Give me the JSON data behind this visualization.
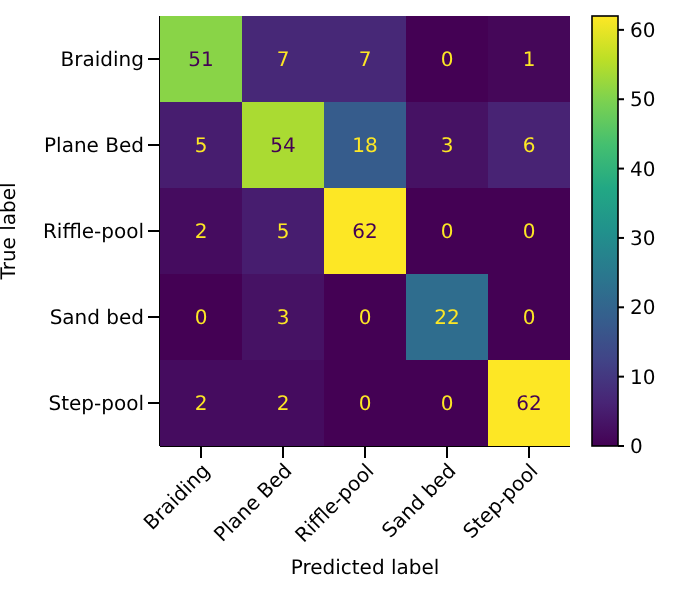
{
  "chart_data": {
    "type": "heatmap",
    "xlabel": "Predicted label",
    "ylabel": "True label",
    "categories": [
      "Braiding",
      "Plane Bed",
      "Riffle-pool",
      "Sand bed",
      "Step-pool"
    ],
    "y_categories": [
      "Braiding",
      "Plane Bed",
      "Riffle-pool",
      "Sand bed",
      "Step-pool"
    ],
    "cells": [
      [
        51,
        7,
        7,
        0,
        1
      ],
      [
        5,
        54,
        18,
        3,
        6
      ],
      [
        2,
        5,
        62,
        0,
        0
      ],
      [
        0,
        3,
        0,
        22,
        0
      ],
      [
        2,
        2,
        0,
        0,
        62
      ]
    ],
    "clim": [
      0,
      62
    ],
    "cticks": [
      0,
      10,
      20,
      30,
      40,
      50,
      60
    ],
    "data_labels": true
  }
}
